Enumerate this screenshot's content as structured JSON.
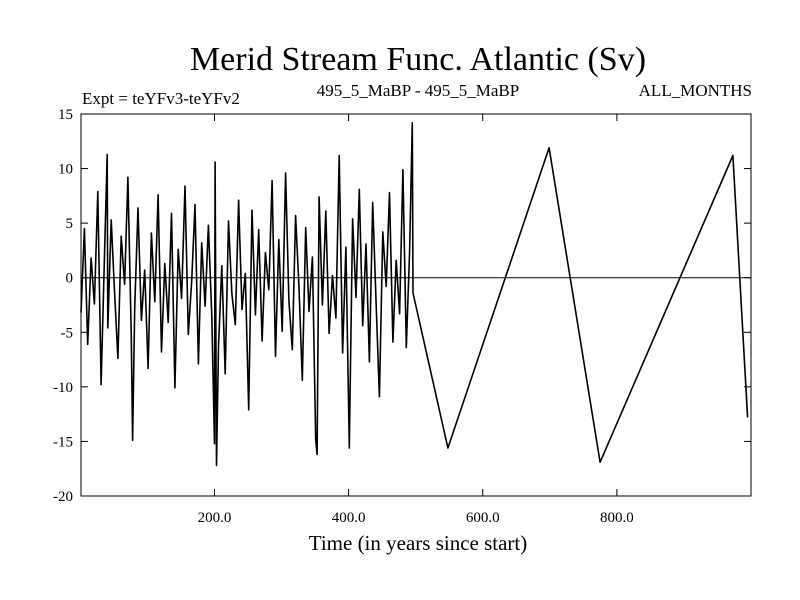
{
  "chart_data": {
    "type": "line",
    "title": "Merid Stream Func. Atlantic (Sv)",
    "subtitle_left": "Expt = teYFv3-teYFv2",
    "subtitle_center": "495_5_MaBP - 495_5_MaBP",
    "subtitle_right": "ALL_MONTHS",
    "xlabel": "Time (in years since start)",
    "ylabel": "",
    "xlim": [
      1,
      1000
    ],
    "ylim": [
      -20,
      15
    ],
    "x_ticks": [
      200,
      400,
      600,
      800
    ],
    "x_tick_labels": [
      "200.0",
      "400.0",
      "600.0",
      "800.0"
    ],
    "y_ticks": [
      -20,
      -15,
      -10,
      -5,
      0,
      5,
      10,
      15
    ],
    "y_tick_labels": [
      "-20",
      "-15",
      "-10",
      "-5",
      "0",
      "5",
      "10",
      "15"
    ],
    "zero_line": true,
    "series": [
      {
        "color": "#000000",
        "x_start": 1,
        "x_step": 5,
        "values": [
          -3.2,
          4.5,
          -6.1,
          1.8,
          -2.4,
          7.9,
          -9.8,
          2.1,
          -4.6,
          5.3,
          -1.2,
          -7.4,
          3.8,
          -0.6,
          9.2,
          -5.5,
          -2.8,
          6.4,
          -3.9,
          0.7,
          -8.3,
          4.1,
          -2.2,
          7.6,
          -6.8,
          1.3,
          -4.1,
          5.9,
          -10.1,
          2.6,
          -1.9,
          8.4,
          -5.2,
          -0.3,
          6.7,
          -7.9,
          3.2,
          -2.6,
          4.8,
          -3.5,
          10.6,
          -6.3,
          1.1,
          -8.8,
          5.2,
          -1.5,
          -4.3,
          7.1,
          -2.9,
          0.4,
          -12.1,
          6.2,
          -3.4,
          4.4,
          -5.8,
          2.3,
          -1.1,
          8.9,
          -7.2,
          3.5,
          -4.9,
          9.6,
          -2.1,
          -6.6,
          5.7,
          -0.9,
          -9.4,
          4.6,
          -3.1,
          1.9,
          -14.8,
          7.4,
          -2.5,
          6.1,
          -5.1,
          0.2,
          -3.7,
          11.2,
          -6.9,
          2.8,
          -15.6,
          5.4,
          -1.8,
          8.1,
          -4.4,
          3.1,
          -7.7,
          6.9,
          -2.3,
          -10.9,
          4.2,
          -0.8,
          7.8,
          -5.9,
          1.6,
          -3.3,
          9.9,
          -6.4,
          2.4,
          -1.4
        ],
        "note_x": [
          200,
          400,
          600,
          800
        ],
        "peaks": [
          {
            "x": 40,
            "y": 11.3
          },
          {
            "x": 78,
            "y": -14.9
          },
          {
            "x": 200,
            "y": -15.2
          },
          {
            "x": 203,
            "y": -17.2
          },
          {
            "x": 353,
            "y": -16.2
          },
          {
            "x": 495,
            "y": 14.2
          },
          {
            "x": 548,
            "y": -15.6
          },
          {
            "x": 699,
            "y": 11.9
          },
          {
            "x": 775,
            "y": -16.9
          },
          {
            "x": 973,
            "y": 11.2
          },
          {
            "x": 995,
            "y": -12.8
          }
        ]
      }
    ]
  }
}
